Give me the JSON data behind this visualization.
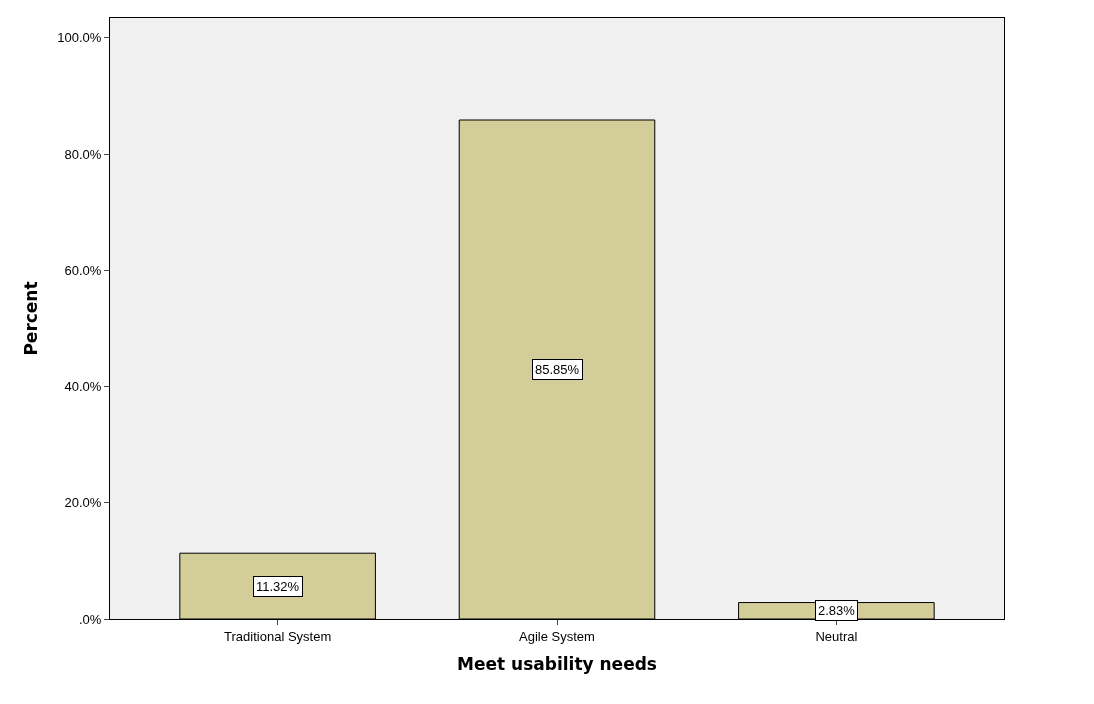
{
  "chart_data": {
    "type": "bar",
    "xlabel": "Meet usability needs",
    "ylabel": "Percent",
    "categories": [
      "Traditional System",
      "Agile System",
      "Neutral"
    ],
    "values": [
      11.32,
      85.85,
      2.83
    ],
    "value_labels": [
      "11.32%",
      "85.85%",
      "2.83%"
    ],
    "color": "#d3ce99",
    "ylim": [
      0,
      103.4
    ],
    "yticks": [
      {
        "value": 0,
        "label": ".0%"
      },
      {
        "value": 20,
        "label": "20.0%"
      },
      {
        "value": 40,
        "label": "40.0%"
      },
      {
        "value": 60,
        "label": "60.0%"
      },
      {
        "value": 80,
        "label": "80.0%"
      },
      {
        "value": 100,
        "label": "100.0%"
      }
    ],
    "grid": false,
    "legend": false
  }
}
